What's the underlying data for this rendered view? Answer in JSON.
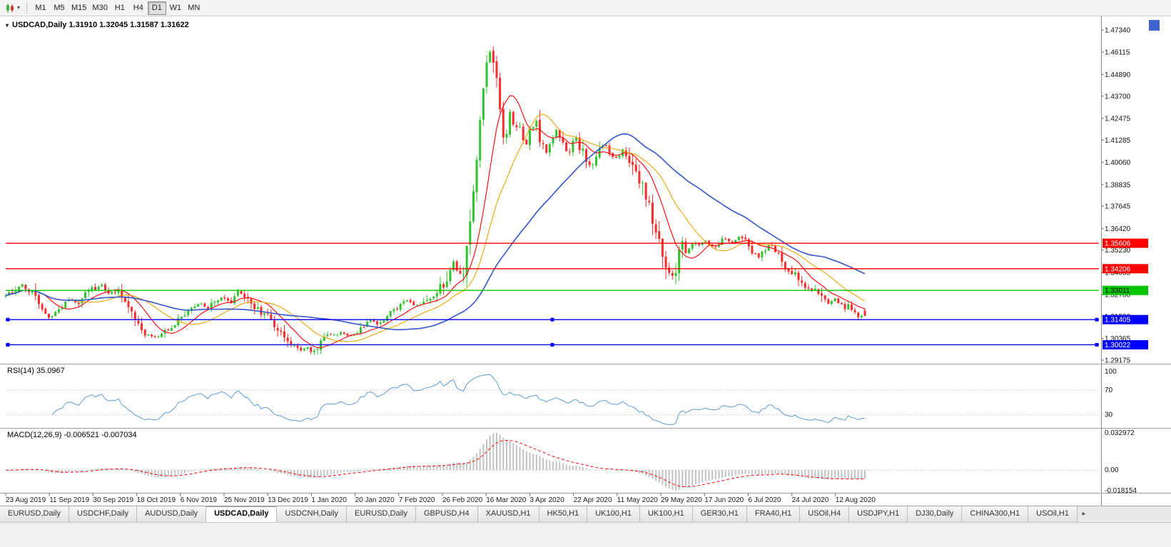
{
  "icons": {
    "caret": "▾",
    "title_caret": "▾",
    "tab_arrow": "▸"
  },
  "toolbar": {
    "timeframes": [
      "M1",
      "M5",
      "M15",
      "M30",
      "H1",
      "H4",
      "D1",
      "W1",
      "MN"
    ],
    "active": "D1"
  },
  "chart": {
    "title_text": "USDCAD,Daily 1.31910 1.32045 1.31587 1.31622"
  },
  "chart_data": {
    "type": "candlestick",
    "symbol": "USDCAD",
    "timeframe": "Daily",
    "ohlc": {
      "open": 1.3191,
      "high": 1.32045,
      "low": 1.31587,
      "close": 1.31622
    },
    "price_range": {
      "top": 1.4734,
      "bottom": 1.29175
    },
    "y_ticks": [
      "1.47340",
      "1.46115",
      "1.44890",
      "1.43700",
      "1.42475",
      "1.41285",
      "1.40060",
      "1.38835",
      "1.37645",
      "1.36420",
      "1.35230",
      "1.34005",
      "1.32780",
      "1.31590",
      "1.30365",
      "1.29175"
    ],
    "x_labels": [
      "23 Aug 2019",
      "11 Sep 2019",
      "30 Sep 2019",
      "18 Oct 2019",
      "6 Nov 2019",
      "25 Nov 2019",
      "13 Dec 2019",
      "1 Jan 2020",
      "20 Jan 2020",
      "7 Feb 2020",
      "26 Feb 2020",
      "16 Mar 2020",
      "3 Apr 2020",
      "22 Apr 2020",
      "11 May 2020",
      "29 May 2020",
      "17 Jun 2020",
      "6 Jul 2020",
      "24 Jul 2020",
      "12 Aug 2020"
    ],
    "h_lines": [
      {
        "value": "1.35606",
        "price": 1.35606,
        "color": "#ff0000",
        "text_color": "#ffffff",
        "handles": false
      },
      {
        "value": "1.34206",
        "price": 1.34206,
        "color": "#ff0000",
        "text_color": "#ffffff",
        "handles": false
      },
      {
        "value": "1.33011",
        "price": 1.33011,
        "color": "#00c400",
        "text_color": "#000000",
        "handles": false
      },
      {
        "value": "1.31405",
        "price": 1.31405,
        "color": "#0000ff",
        "text_color": "#ffffff",
        "handles": true
      },
      {
        "value": "1.30022",
        "price": 1.30022,
        "color": "#0000ff",
        "text_color": "#ffffff",
        "handles": true
      }
    ],
    "up_color": "#2fc42f",
    "down_color": "#fa2b2b",
    "ma_lines": [
      {
        "period": 10,
        "color": "#ff0000",
        "width": 1.1
      },
      {
        "period": 20,
        "color": "#eea300",
        "width": 1.1
      },
      {
        "period": 45,
        "color": "#3356cc",
        "width": 1.6
      }
    ],
    "candle_count": 260,
    "price_anchors": [
      [
        0.0,
        1.327
      ],
      [
        0.012,
        1.3305
      ],
      [
        0.02,
        1.334
      ],
      [
        0.032,
        1.327
      ],
      [
        0.042,
        1.319
      ],
      [
        0.051,
        1.3145
      ],
      [
        0.062,
        1.32
      ],
      [
        0.075,
        1.325
      ],
      [
        0.085,
        1.322
      ],
      [
        0.095,
        1.329
      ],
      [
        0.101,
        1.331
      ],
      [
        0.112,
        1.333
      ],
      [
        0.12,
        1.329
      ],
      [
        0.13,
        1.33
      ],
      [
        0.14,
        1.323
      ],
      [
        0.152,
        1.312
      ],
      [
        0.163,
        1.306
      ],
      [
        0.172,
        1.304
      ],
      [
        0.183,
        1.307
      ],
      [
        0.193,
        1.311
      ],
      [
        0.204,
        1.316
      ],
      [
        0.215,
        1.321
      ],
      [
        0.225,
        1.323
      ],
      [
        0.235,
        1.32
      ],
      [
        0.245,
        1.325
      ],
      [
        0.254,
        1.326
      ],
      [
        0.262,
        1.323
      ],
      [
        0.27,
        1.329
      ],
      [
        0.28,
        1.327
      ],
      [
        0.29,
        1.321
      ],
      [
        0.298,
        1.317
      ],
      [
        0.305,
        1.3165
      ],
      [
        0.315,
        1.31
      ],
      [
        0.325,
        1.304
      ],
      [
        0.335,
        1.299
      ],
      [
        0.345,
        1.297
      ],
      [
        0.352,
        1.2985
      ],
      [
        0.356,
        1.296
      ],
      [
        0.365,
        1.3
      ],
      [
        0.372,
        1.306
      ],
      [
        0.38,
        1.305
      ],
      [
        0.39,
        1.3065
      ],
      [
        0.4,
        1.3055
      ],
      [
        0.407,
        1.3065
      ],
      [
        0.415,
        1.31
      ],
      [
        0.424,
        1.314
      ],
      [
        0.433,
        1.311
      ],
      [
        0.441,
        1.316
      ],
      [
        0.45,
        1.32
      ],
      [
        0.458,
        1.321
      ],
      [
        0.465,
        1.3255
      ],
      [
        0.472,
        1.323
      ],
      [
        0.48,
        1.3215
      ],
      [
        0.49,
        1.324
      ],
      [
        0.497,
        1.327
      ],
      [
        0.503,
        1.33
      ],
      [
        0.509,
        1.333
      ],
      [
        0.515,
        1.3395
      ],
      [
        0.521,
        1.3465
      ],
      [
        0.527,
        1.339
      ],
      [
        0.533,
        1.342
      ],
      [
        0.539,
        1.362
      ],
      [
        0.545,
        1.387
      ],
      [
        0.551,
        1.415
      ],
      [
        0.556,
        1.444
      ],
      [
        0.56,
        1.458
      ],
      [
        0.563,
        1.464
      ],
      [
        0.566,
        1.452
      ],
      [
        0.569,
        1.456
      ],
      [
        0.572,
        1.442
      ],
      [
        0.576,
        1.427
      ],
      [
        0.58,
        1.412
      ],
      [
        0.584,
        1.42
      ],
      [
        0.588,
        1.43
      ],
      [
        0.592,
        1.418
      ],
      [
        0.596,
        1.425
      ],
      [
        0.6,
        1.415
      ],
      [
        0.605,
        1.408
      ],
      [
        0.611,
        1.419
      ],
      [
        0.617,
        1.423
      ],
      [
        0.623,
        1.412
      ],
      [
        0.629,
        1.406
      ],
      [
        0.635,
        1.413
      ],
      [
        0.641,
        1.418
      ],
      [
        0.648,
        1.41
      ],
      [
        0.655,
        1.404
      ],
      [
        0.662,
        1.416
      ],
      [
        0.669,
        1.409
      ],
      [
        0.676,
        1.401
      ],
      [
        0.683,
        1.398
      ],
      [
        0.69,
        1.406
      ],
      [
        0.697,
        1.411
      ],
      [
        0.704,
        1.406
      ],
      [
        0.712,
        1.402
      ],
      [
        0.719,
        1.409
      ],
      [
        0.726,
        1.401
      ],
      [
        0.733,
        1.395
      ],
      [
        0.74,
        1.388
      ],
      [
        0.748,
        1.376
      ],
      [
        0.755,
        1.368
      ],
      [
        0.76,
        1.358
      ],
      [
        0.763,
        1.352
      ],
      [
        0.768,
        1.344
      ],
      [
        0.774,
        1.339
      ],
      [
        0.778,
        1.336
      ],
      [
        0.783,
        1.349
      ],
      [
        0.787,
        1.357
      ],
      [
        0.791,
        1.35
      ],
      [
        0.796,
        1.354
      ],
      [
        0.801,
        1.357
      ],
      [
        0.806,
        1.354
      ],
      [
        0.811,
        1.356
      ],
      [
        0.814,
        1.358
      ],
      [
        0.82,
        1.355
      ],
      [
        0.826,
        1.353
      ],
      [
        0.832,
        1.357
      ],
      [
        0.838,
        1.3585
      ],
      [
        0.844,
        1.356
      ],
      [
        0.85,
        1.358
      ],
      [
        0.856,
        1.36
      ],
      [
        0.862,
        1.356
      ],
      [
        0.865,
        1.354
      ],
      [
        0.871,
        1.351
      ],
      [
        0.877,
        1.348
      ],
      [
        0.883,
        1.352
      ],
      [
        0.889,
        1.355
      ],
      [
        0.895,
        1.353
      ],
      [
        0.901,
        1.347
      ],
      [
        0.908,
        1.343
      ],
      [
        0.916,
        1.34
      ],
      [
        0.922,
        1.336
      ],
      [
        0.928,
        1.333
      ],
      [
        0.934,
        1.33
      ],
      [
        0.94,
        1.332
      ],
      [
        0.946,
        1.328
      ],
      [
        0.952,
        1.325
      ],
      [
        0.958,
        1.322
      ],
      [
        0.962,
        1.324
      ],
      [
        0.966,
        1.326
      ],
      [
        0.971,
        1.323
      ],
      [
        0.976,
        1.32
      ],
      [
        0.981,
        1.3215
      ],
      [
        0.986,
        1.3185
      ],
      [
        0.991,
        1.3165
      ],
      [
        1.0,
        1.3162
      ]
    ],
    "rsi": {
      "label_text": "RSI(14) 35.0967",
      "period": 14,
      "value": "35.0967",
      "color": "#5b9bd5",
      "scale": [
        {
          "label": "100",
          "value": 100
        },
        {
          "label": "70",
          "value": 70
        },
        {
          "label": "30",
          "value": 30
        }
      ],
      "levels_dotted": [
        70,
        30
      ]
    },
    "macd": {
      "label_text": "MACD(12,26,9) -0.006521 -0.007034",
      "fast": 12,
      "slow": 26,
      "signal": 9,
      "main_value": "-0.006521",
      "signal_value": "-0.007034",
      "scale_max": 0.032972,
      "scale_min": -0.018154,
      "scale": [
        {
          "label": "0.032972",
          "value": 0.032972
        },
        {
          "label": "0.00",
          "value": 0
        },
        {
          "label": "-0.018154",
          "value": -0.018154
        }
      ],
      "hist_color": "#c2c2c2",
      "signal_color": "#ff0000"
    },
    "corner_marker_color": "#3f63cf"
  },
  "tabs": {
    "active_index": 3,
    "items": [
      "EURUSD,Daily",
      "USDCHF,Daily",
      "AUDUSD,Daily",
      "USDCAD,Daily",
      "USDCNH,Daily",
      "EURUSD,Daily",
      "GBPUSD,H4",
      "XAUUSD,H1",
      "HK50,H1",
      "UK100,H1",
      "UK100,H1",
      "GER30,H1",
      "FRA40,H1",
      "USOil,H4",
      "USDJPY,H1",
      "DJ30,Daily",
      "CHINA300,H1",
      "USOil,H1"
    ]
  }
}
